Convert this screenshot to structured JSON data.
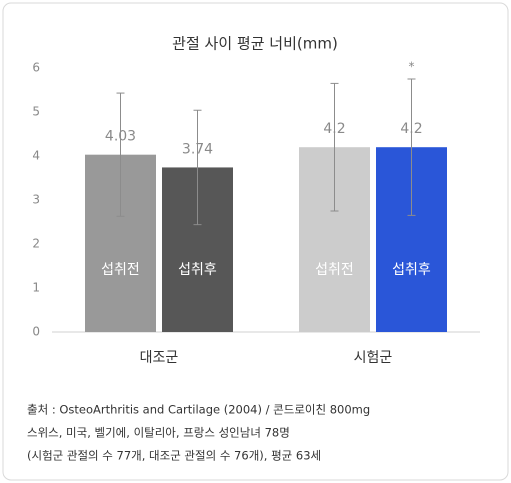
{
  "chart_data": {
    "type": "bar",
    "title": "관절 사이 평균 너비(mm)",
    "categories": [
      "대조군",
      "시험군"
    ],
    "series": [
      {
        "name": "섭취전",
        "colors": [
          "#999999",
          "#cccccc"
        ],
        "values": [
          4.03,
          4.2
        ],
        "errors": [
          1.4,
          1.45
        ]
      },
      {
        "name": "섭취후",
        "colors": [
          "#575757",
          "#2a56d8"
        ],
        "values": [
          3.74,
          4.2
        ],
        "errors": [
          1.3,
          1.55
        ]
      }
    ],
    "annotation": {
      "text": "*",
      "series": 1,
      "category": 1
    },
    "ylim": [
      0,
      6
    ],
    "yticks": [
      0,
      1,
      2,
      3,
      4,
      5,
      6
    ],
    "grid": false,
    "footnote": [
      "출처 : OsteoArthritis and Cartilage (2004) / 콘드로이친 800mg",
      "스위스, 미국, 벨기에, 이탈리아, 프랑스 성인남녀 78명",
      "(시험군 관절의 수 77개, 대조군 관절의 수 76개), 평균 63세"
    ]
  }
}
